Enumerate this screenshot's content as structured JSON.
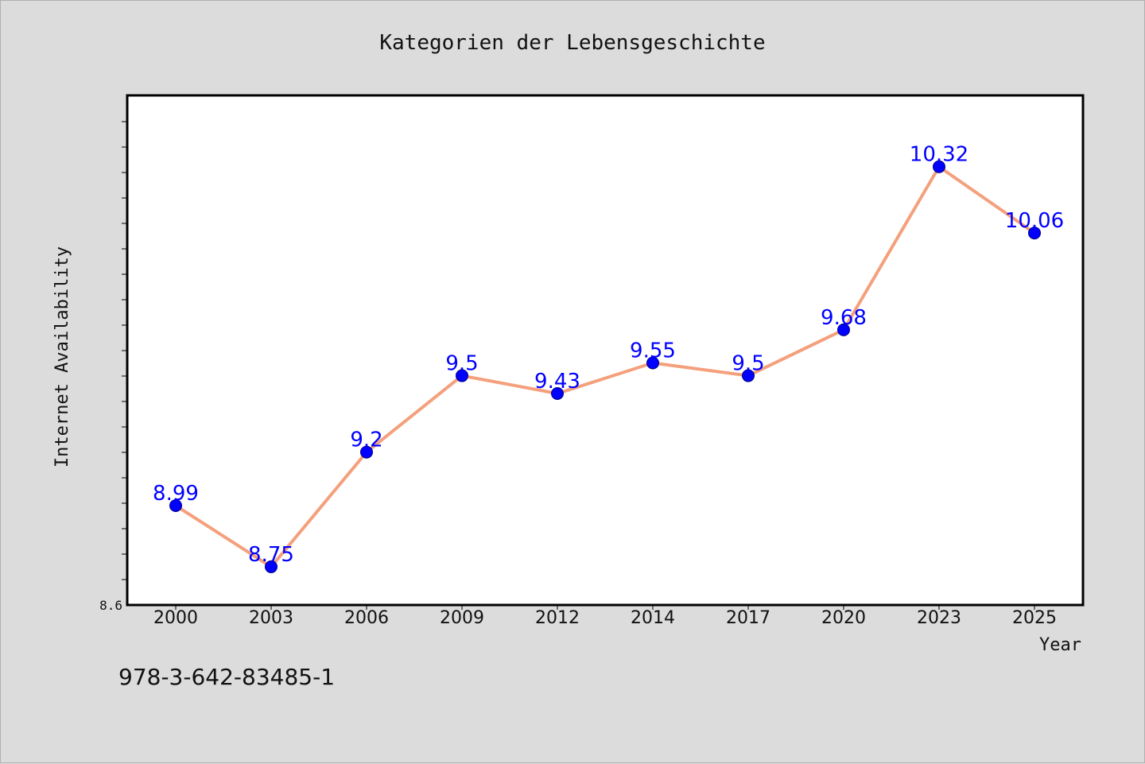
{
  "chart_data": {
    "type": "line",
    "title": "Kategorien der Lebensgeschichte",
    "xlabel": "Year",
    "ylabel": "Internet Availability",
    "categories": [
      "2000",
      "2003",
      "2006",
      "2009",
      "2012",
      "2014",
      "2017",
      "2020",
      "2023",
      "2025"
    ],
    "series": [
      {
        "values": [
          8.99,
          8.75,
          9.2,
          9.5,
          9.43,
          9.55,
          9.5,
          9.68,
          10.32,
          10.06
        ],
        "labels": [
          "8.99",
          "8.75",
          "9.2",
          "9.5",
          "9.43",
          "9.55",
          "9.5",
          "9.68",
          "10.32",
          "10.06"
        ]
      }
    ],
    "ylim": [
      8.6,
      10.6
    ],
    "ytick_labels": [
      "8.6"
    ],
    "grid": false,
    "legend": "none",
    "colors": {
      "line": "#f4a07c",
      "marker": "#0000ff",
      "marker_edge": "#000080",
      "data_label": "#0000ff",
      "background": "#dcdcdc",
      "plot_background": "#ffffff"
    }
  },
  "footer": {
    "isbn": "978-3-642-83485-1"
  }
}
